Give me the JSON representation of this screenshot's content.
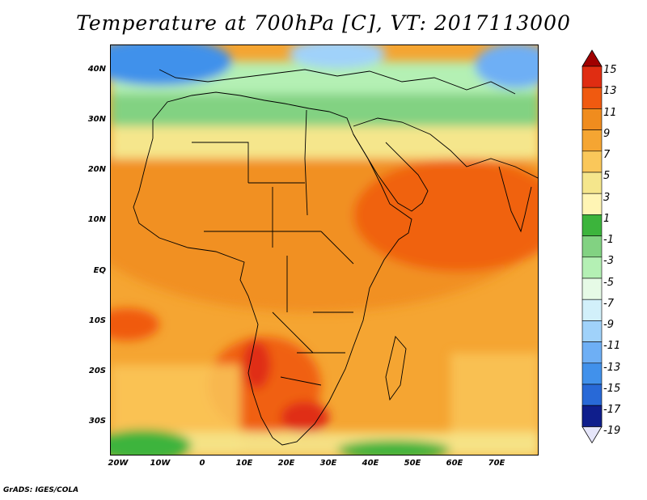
{
  "title": "Temperature at 700hPa [C], VT: 2017113000",
  "footer": "GrADS: IGES/COLA",
  "axes": {
    "lat_labels": [
      "40N",
      "30N",
      "20N",
      "10N",
      "EQ",
      "10S",
      "20S",
      "30S"
    ],
    "lon_labels": [
      "20W",
      "10W",
      "0",
      "10E",
      "20E",
      "30E",
      "40E",
      "50E",
      "60E",
      "70E"
    ]
  },
  "colorbar": {
    "labels": [
      "15",
      "13",
      "11",
      "9",
      "7",
      "5",
      "3",
      "1",
      "-1",
      "-3",
      "-5",
      "-7",
      "-9",
      "-11",
      "-13",
      "-15",
      "-17",
      "-19"
    ],
    "colors": [
      "#a00000",
      "#e02d12",
      "#f05a10",
      "#f08c1e",
      "#f5a532",
      "#fac75a",
      "#f5e68c",
      "#fff5b4",
      "#3cb43c",
      "#82d282",
      "#b4f0b4",
      "#e6fae6",
      "#d2f0fa",
      "#a0d2fa",
      "#6eaff5",
      "#4191eb",
      "#2869d7",
      "#1441b4",
      "#0f1e8c"
    ]
  },
  "chart_data": {
    "type": "heatmap",
    "title": "Temperature at 700hPa [C], VT: 2017113000",
    "variable": "Temperature at 700hPa",
    "units": "C",
    "valid_time": "2017113000",
    "lon_range": [
      -23,
      80
    ],
    "lat_range": [
      -37,
      45
    ],
    "color_levels": [
      -19,
      -17,
      -15,
      -13,
      -11,
      -9,
      -7,
      -5,
      -3,
      -1,
      1,
      3,
      5,
      7,
      9,
      11,
      13,
      15
    ]
  }
}
